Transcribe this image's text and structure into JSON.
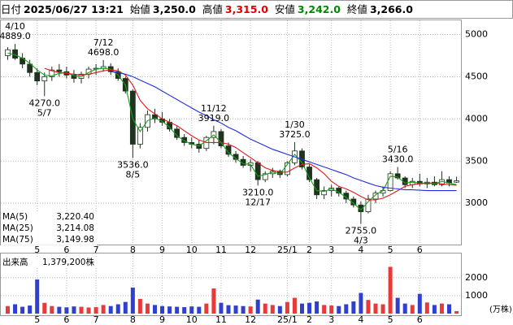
{
  "header": [
    {
      "label": "日付",
      "value": "2025/06/27 13:21"
    },
    {
      "label": "始値",
      "value": "3,250.0"
    },
    {
      "label": "高値",
      "value": "3,315.0",
      "color": "#e00000"
    },
    {
      "label": "安値",
      "value": "3,242.0",
      "color": "#008800"
    },
    {
      "label": "終値",
      "value": "3,266.0"
    }
  ],
  "chart_data": [
    {
      "type": "candlestick",
      "categories": [
        null,
        null,
        null,
        null,
        "5",
        null,
        null,
        null,
        "6",
        null,
        null,
        null,
        "7",
        null,
        null,
        null,
        null,
        "8",
        null,
        null,
        null,
        "9",
        null,
        null,
        null,
        "10",
        null,
        null,
        null,
        "11",
        null,
        null,
        null,
        "12",
        null,
        null,
        null,
        null,
        "25/1",
        null,
        null,
        "2",
        null,
        null,
        "3",
        null,
        null,
        null,
        "4",
        null,
        null,
        null,
        "5",
        null,
        null,
        null,
        "6",
        null,
        null,
        null,
        null,
        null
      ],
      "open": [
        4750,
        4820,
        4720,
        4650,
        4550,
        4450,
        4500,
        4580,
        4560,
        4520,
        4480,
        4530,
        4590,
        4600,
        4620,
        4560,
        4480,
        4330,
        3700,
        3900,
        4050,
        4000,
        3960,
        3880,
        3780,
        3720,
        3700,
        3650,
        3780,
        3850,
        3680,
        3580,
        3520,
        3450,
        3480,
        3280,
        3350,
        3380,
        3340,
        3480,
        3620,
        3430,
        3280,
        3100,
        3150,
        3180,
        3120,
        3050,
        2980,
        2900,
        3050,
        3120,
        3150,
        3350,
        3300,
        3220,
        3260,
        3230,
        3250,
        3220,
        3280,
        3250
      ],
      "high": [
        4850,
        4889,
        4780,
        4700,
        4600,
        4550,
        4620,
        4650,
        4620,
        4580,
        4560,
        4620,
        4650,
        4698,
        4660,
        4600,
        4500,
        4350,
        3950,
        4100,
        4120,
        4080,
        4000,
        3920,
        3820,
        3780,
        3750,
        3800,
        3919,
        3880,
        3720,
        3620,
        3560,
        3520,
        3500,
        3380,
        3420,
        3400,
        3500,
        3725,
        3650,
        3460,
        3300,
        3200,
        3220,
        3200,
        3150,
        3080,
        3020,
        3100,
        3150,
        3200,
        3380,
        3430,
        3320,
        3300,
        3350,
        3300,
        3320,
        3380,
        3320,
        3315
      ],
      "low": [
        4700,
        4700,
        4600,
        4500,
        4400,
        4270,
        4450,
        4500,
        4480,
        4430,
        4420,
        4480,
        4520,
        4560,
        4520,
        4450,
        4300,
        3536,
        3650,
        3850,
        3950,
        3920,
        3850,
        3750,
        3680,
        3650,
        3600,
        3620,
        3700,
        3650,
        3550,
        3480,
        3420,
        3380,
        3210,
        3250,
        3300,
        3300,
        3320,
        3450,
        3400,
        3250,
        3050,
        3050,
        3080,
        3080,
        3000,
        2950,
        2755,
        2880,
        3000,
        3080,
        3140,
        3280,
        3180,
        3180,
        3200,
        3180,
        3200,
        3200,
        3200,
        3242
      ],
      "close": [
        4820,
        4720,
        4650,
        4550,
        4450,
        4500,
        4580,
        4560,
        4520,
        4480,
        4530,
        4590,
        4600,
        4620,
        4560,
        4480,
        4330,
        3700,
        3900,
        4050,
        4000,
        3960,
        3880,
        3780,
        3720,
        3700,
        3650,
        3780,
        3850,
        3680,
        3580,
        3520,
        3450,
        3480,
        3280,
        3350,
        3380,
        3340,
        3480,
        3620,
        3430,
        3280,
        3100,
        3150,
        3180,
        3120,
        3050,
        2980,
        2900,
        3050,
        3120,
        3150,
        3350,
        3300,
        3220,
        3260,
        3230,
        3250,
        3220,
        3280,
        3240,
        3266
      ],
      "up_color": "#ffffff",
      "down_color": "#1f3320",
      "line_color": "#1f3320",
      "series": [
        {
          "name": "MA(5)",
          "color": "#16a016",
          "legend_value": "3,220.40",
          "values": [
            4780,
            4760,
            4720,
            4660,
            4580,
            4520,
            4510,
            4540,
            4550,
            4510,
            4500,
            4550,
            4590,
            4600,
            4590,
            4520,
            4400,
            4000,
            3850,
            3980,
            4010,
            3970,
            3900,
            3800,
            3740,
            3700,
            3680,
            3740,
            3810,
            3720,
            3600,
            3530,
            3470,
            3460,
            3320,
            3340,
            3370,
            3350,
            3460,
            3580,
            3480,
            3300,
            3150,
            3140,
            3170,
            3130,
            3070,
            3000,
            2920,
            3020,
            3100,
            3150,
            3320,
            3310,
            3240,
            3250,
            3240,
            3240,
            3230,
            3260,
            3240,
            3220.4
          ]
        },
        {
          "name": "MA(25)",
          "color": "#e01818",
          "legend_value": "3,214.08",
          "values": [
            null,
            null,
            null,
            null,
            null,
            4600,
            4570,
            4550,
            4540,
            4530,
            4520,
            4530,
            4550,
            4570,
            4580,
            4570,
            4520,
            4400,
            4220,
            4120,
            4060,
            4000,
            3960,
            3920,
            3860,
            3800,
            3750,
            3720,
            3720,
            3720,
            3700,
            3660,
            3600,
            3540,
            3480,
            3420,
            3390,
            3370,
            3370,
            3420,
            3460,
            3470,
            3420,
            3350,
            3260,
            3200,
            3170,
            3130,
            3080,
            3040,
            3040,
            3060,
            3100,
            3150,
            3200,
            3220,
            3230,
            3240,
            3240,
            3230,
            3220,
            3214.08
          ]
        },
        {
          "name": "MA(75)",
          "color": "#1f2fe0",
          "legend_value": "3,149.98",
          "values": [
            null,
            null,
            null,
            null,
            null,
            null,
            null,
            null,
            null,
            null,
            null,
            null,
            null,
            null,
            4560,
            4550,
            4530,
            4500,
            4460,
            4420,
            4380,
            4330,
            4280,
            4230,
            4180,
            4130,
            4080,
            4040,
            3990,
            3950,
            3900,
            3860,
            3810,
            3760,
            3720,
            3680,
            3640,
            3610,
            3580,
            3550,
            3520,
            3490,
            3460,
            3430,
            3400,
            3370,
            3340,
            3300,
            3270,
            3240,
            3210,
            3190,
            3180,
            3170,
            3160,
            3160,
            3155,
            3150,
            3150,
            3150,
            3150,
            3149.98
          ]
        }
      ],
      "ylim": [
        2520,
        5140
      ],
      "yticks": [
        3000,
        3500,
        4000,
        4500,
        5000
      ],
      "grid": true,
      "annotations": [
        {
          "date": "4/10",
          "value": 4889,
          "label": "4889.0",
          "side": "high"
        },
        {
          "date": "5/7",
          "value": 4270,
          "label": "4270.0",
          "side": "low"
        },
        {
          "date": "7/12",
          "value": 4698,
          "label": "4698.0",
          "side": "high"
        },
        {
          "date": "8/5",
          "value": 3536,
          "label": "3536.0",
          "side": "low"
        },
        {
          "date": "11/12",
          "value": 3919,
          "label": "3919.0",
          "side": "high"
        },
        {
          "date": "12/17",
          "value": 3210,
          "label": "3210.0",
          "side": "low"
        },
        {
          "date": "1/30",
          "value": 3725,
          "label": "3725.0",
          "side": "high"
        },
        {
          "date": "4/3",
          "value": 2755,
          "label": "2755.0",
          "side": "low"
        },
        {
          "date": "5/16",
          "value": 3430,
          "label": "3430.0",
          "side": "high"
        }
      ]
    },
    {
      "type": "bar",
      "title": "出来高",
      "value_label": "1,379,200株",
      "unit": "(万株)",
      "categories": [
        null,
        null,
        null,
        null,
        "5",
        null,
        null,
        null,
        "6",
        null,
        null,
        null,
        "7",
        null,
        null,
        null,
        null,
        "8",
        null,
        null,
        null,
        "9",
        null,
        null,
        null,
        "10",
        null,
        null,
        null,
        "11",
        null,
        null,
        null,
        "12",
        null,
        null,
        null,
        null,
        "25/1",
        null,
        null,
        "2",
        null,
        null,
        "3",
        null,
        null,
        null,
        "4",
        null,
        null,
        null,
        "5",
        null,
        null,
        null,
        "6",
        null,
        null,
        null,
        null,
        null
      ],
      "values": [
        420,
        520,
        380,
        450,
        1900,
        600,
        420,
        380,
        350,
        400,
        380,
        340,
        360,
        480,
        420,
        520,
        650,
        1450,
        820,
        560,
        480,
        420,
        400,
        380,
        360,
        400,
        380,
        560,
        1400,
        600,
        470,
        450,
        420,
        400,
        780,
        560,
        480,
        420,
        650,
        880,
        560,
        600,
        680,
        480,
        450,
        420,
        520,
        680,
        1150,
        760,
        560,
        520,
        2600,
        880,
        560,
        480,
        1100,
        620,
        480,
        560,
        520,
        137.92
      ],
      "up_color": "#e83a3a",
      "down_color": "#2f3fd0",
      "ylim": [
        0,
        3300
      ],
      "yticks": [
        1000,
        2000
      ],
      "grid": true
    }
  ]
}
